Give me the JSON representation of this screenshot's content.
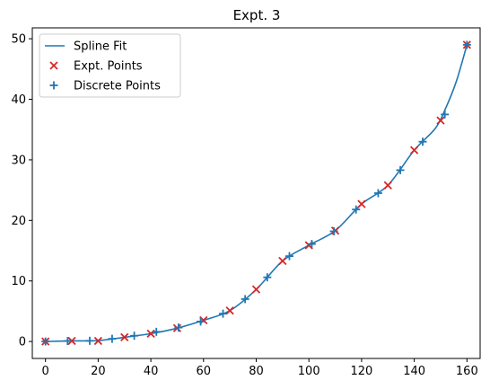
{
  "chart_data": {
    "type": "line",
    "title": "Expt. 3",
    "xlabel": "",
    "ylabel": "",
    "xlim": [
      -5,
      165
    ],
    "ylim": [
      -2.8,
      51.8
    ],
    "x_ticks": [
      0,
      20,
      40,
      60,
      80,
      100,
      120,
      140,
      160
    ],
    "y_ticks": [
      0,
      10,
      20,
      30,
      40,
      50
    ],
    "grid": false,
    "legend_position": "top-left",
    "series": [
      {
        "name": "Spline Fit",
        "kind": "line",
        "color": "#1f77b4",
        "x": [
          0,
          10,
          20,
          30,
          40,
          50,
          60,
          70,
          80,
          90,
          100,
          110,
          120,
          130,
          140,
          148,
          152,
          156,
          160
        ],
        "y": [
          0.0,
          0.1,
          0.15,
          0.7,
          1.3,
          2.2,
          3.5,
          5.1,
          8.6,
          13.3,
          15.9,
          18.3,
          22.7,
          25.8,
          31.6,
          35.2,
          38.6,
          43.0,
          49.0
        ]
      },
      {
        "name": "Expt. Points",
        "kind": "scatter-x",
        "color": "#d62728",
        "x": [
          0,
          10,
          20,
          30,
          40,
          50,
          60,
          70,
          80,
          90,
          100,
          110,
          120,
          130,
          140,
          150,
          160
        ],
        "y": [
          0.0,
          0.1,
          0.1,
          0.7,
          1.3,
          2.2,
          3.5,
          5.1,
          8.6,
          13.3,
          15.9,
          18.3,
          22.7,
          25.8,
          31.6,
          36.5,
          49.0
        ]
      },
      {
        "name": "Discrete Points",
        "kind": "scatter-plus",
        "color": "#1f77b4",
        "x": [
          0,
          8.4,
          16.8,
          25.3,
          33.7,
          42.1,
          50.5,
          58.9,
          67.4,
          75.8,
          84.2,
          92.6,
          101.1,
          109.5,
          117.9,
          126.3,
          134.7,
          143.2,
          151.6,
          160
        ],
        "y": [
          0.0,
          0.08,
          0.12,
          0.45,
          0.95,
          1.6,
          2.3,
          3.3,
          4.6,
          7.0,
          10.6,
          14.1,
          16.1,
          18.2,
          21.8,
          24.5,
          28.3,
          33.0,
          37.5,
          49.0
        ]
      }
    ]
  }
}
